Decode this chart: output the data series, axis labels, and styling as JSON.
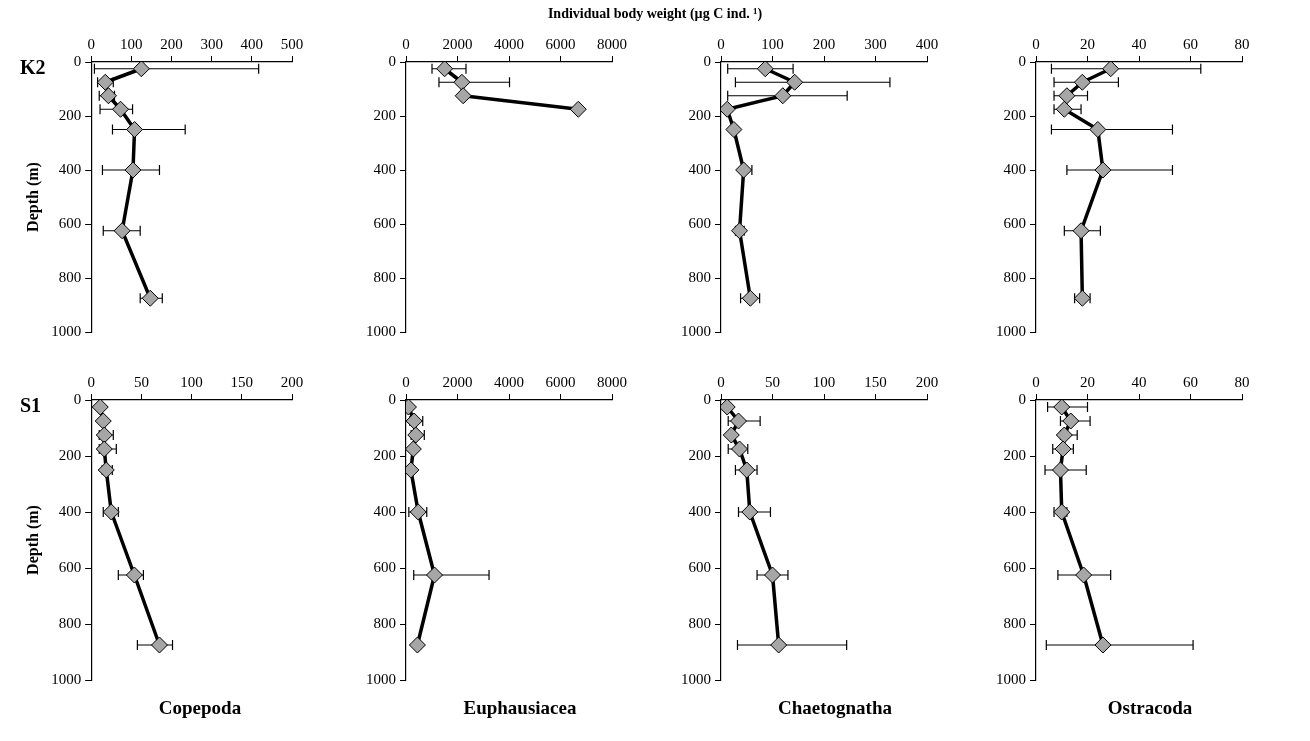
{
  "chart_data": [
    {
      "type": "line",
      "title": "K2",
      "ylabel": "Depth (m)",
      "annotations": [
        "Individual body weight (µg C ind. ¹)"
      ],
      "marker": "diamond",
      "line_style": "solid",
      "xlim": [
        0,
        500
      ],
      "xticks": [
        0,
        100,
        200,
        300,
        400,
        500
      ],
      "ylim": [
        1000,
        0
      ],
      "yticks": [
        0,
        200,
        400,
        600,
        800,
        1000
      ],
      "series": [
        {
          "color": "#000000",
          "x": [
            125,
            35,
            43,
            73,
            108,
            104,
            77,
            147
          ],
          "values": [
            25,
            75,
            125,
            175,
            250,
            400,
            625,
            875
          ],
          "xerrors": [
            [
              8,
              417
            ],
            [
              16,
              55
            ],
            [
              20,
              58
            ],
            [
              22,
              103
            ],
            [
              53,
              234
            ],
            [
              28,
              170
            ],
            [
              30,
              122
            ],
            [
              122,
              177
            ]
          ]
        }
      ]
    },
    {
      "type": "line",
      "marker": "diamond",
      "line_style": "solid",
      "xlim": [
        0,
        8000
      ],
      "xticks": [
        0,
        2000,
        4000,
        6000,
        8000
      ],
      "ylim": [
        1000,
        0
      ],
      "yticks": [
        0,
        200,
        400,
        600,
        800,
        1000
      ],
      "series": [
        {
          "color": "#000000",
          "x": [
            1500,
            2170,
            2220,
            6690
          ],
          "values": [
            25,
            75,
            125,
            175
          ],
          "xerrors": [
            [
              1010,
              2330
            ],
            [
              1280,
              4020
            ],
            null,
            null
          ]
        }
      ]
    },
    {
      "type": "line",
      "marker": "diamond",
      "line_style": "solid",
      "xlim": [
        0,
        400
      ],
      "xticks": [
        0,
        100,
        200,
        300,
        400
      ],
      "ylim": [
        1000,
        0
      ],
      "yticks": [
        0,
        200,
        400,
        600,
        800,
        1000
      ],
      "series": [
        {
          "color": "#000000",
          "x": [
            86,
            143,
            120,
            12,
            25,
            44,
            36,
            57
          ],
          "values": [
            25,
            75,
            125,
            175,
            250,
            400,
            625,
            875
          ],
          "xerrors": [
            [
              13,
              140
            ],
            [
              28,
              328
            ],
            [
              13,
              245
            ],
            null,
            null,
            [
              44,
              60
            ],
            [
              28,
              45
            ],
            [
              38,
              75
            ]
          ]
        }
      ]
    },
    {
      "type": "line",
      "marker": "diamond",
      "line_style": "solid",
      "xlim": [
        0,
        80
      ],
      "xticks": [
        0,
        20,
        40,
        60,
        80
      ],
      "ylim": [
        1000,
        0
      ],
      "yticks": [
        0,
        200,
        400,
        600,
        800,
        1000
      ],
      "series": [
        {
          "color": "#000000",
          "x": [
            29,
            18,
            12,
            11,
            24,
            26,
            17.5,
            18
          ],
          "values": [
            25,
            75,
            125,
            175,
            250,
            400,
            625,
            875
          ],
          "xerrors": [
            [
              6,
              64
            ],
            [
              7,
              32
            ],
            [
              7,
              20
            ],
            [
              7,
              17.5
            ],
            [
              6,
              53
            ],
            [
              12,
              53
            ],
            [
              11,
              25
            ],
            [
              15,
              21
            ]
          ]
        }
      ]
    },
    {
      "type": "line",
      "title": "S1",
      "ylabel": "Depth (m)",
      "xlabel": "Copepoda",
      "marker": "diamond",
      "line_style": "solid",
      "xlim": [
        0,
        200
      ],
      "xticks": [
        0,
        50,
        100,
        150,
        200
      ],
      "ylim": [
        1000,
        0
      ],
      "yticks": [
        0,
        200,
        400,
        600,
        800,
        1000
      ],
      "series": [
        {
          "color": "#000000",
          "x": [
            9,
            12,
            13,
            13,
            15,
            20,
            43,
            68
          ],
          "values": [
            25,
            75,
            125,
            175,
            250,
            400,
            625,
            875
          ],
          "xerrors": [
            null,
            null,
            [
              8,
              22
            ],
            [
              8,
              25
            ],
            [
              11,
              21
            ],
            [
              12,
              27
            ],
            [
              27,
              52
            ],
            [
              46,
              81
            ]
          ]
        }
      ]
    },
    {
      "type": "line",
      "xlabel": "Euphausiacea",
      "marker": "diamond",
      "line_style": "solid",
      "xlim": [
        0,
        8000
      ],
      "xticks": [
        0,
        2000,
        4000,
        6000,
        8000
      ],
      "ylim": [
        1000,
        0
      ],
      "yticks": [
        0,
        200,
        400,
        600,
        800,
        1000
      ],
      "series": [
        {
          "color": "#000000",
          "x": [
            95,
            316,
            380,
            285,
            190,
            474,
            1107,
            443
          ],
          "values": [
            25,
            75,
            125,
            175,
            250,
            400,
            625,
            875
          ],
          "xerrors": [
            null,
            [
              150,
              650
            ],
            [
              200,
              710
            ],
            null,
            null,
            [
              110,
              806
            ],
            [
              300,
              3225
            ],
            null
          ]
        }
      ]
    },
    {
      "type": "line",
      "xlabel": "Chaetognatha",
      "marker": "diamond",
      "line_style": "solid",
      "xlim": [
        0,
        200
      ],
      "xticks": [
        0,
        50,
        100,
        150,
        200
      ],
      "ylim": [
        1000,
        0
      ],
      "yticks": [
        0,
        200,
        400,
        600,
        800,
        1000
      ],
      "series": [
        {
          "color": "#000000",
          "x": [
            6,
            17,
            10,
            18,
            25,
            28,
            50,
            56
          ],
          "values": [
            25,
            75,
            125,
            175,
            250,
            400,
            625,
            875
          ],
          "xerrors": [
            null,
            [
              7,
              38
            ],
            null,
            [
              7,
              26
            ],
            [
              14,
              35
            ],
            [
              17,
              48
            ],
            [
              35,
              65
            ],
            [
              16,
              122
            ]
          ]
        }
      ]
    },
    {
      "type": "line",
      "xlabel": "Ostracoda",
      "marker": "diamond",
      "line_style": "solid",
      "xlim": [
        0,
        80
      ],
      "xticks": [
        0,
        20,
        40,
        60,
        80
      ],
      "ylim": [
        1000,
        0
      ],
      "yticks": [
        0,
        200,
        400,
        600,
        800,
        1000
      ],
      "series": [
        {
          "color": "#000000",
          "x": [
            10,
            13.5,
            11,
            10.5,
            9.5,
            10,
            18.5,
            26
          ],
          "values": [
            25,
            75,
            125,
            175,
            250,
            400,
            625,
            875
          ],
          "xerrors": [
            [
              4.5,
              20
            ],
            [
              9.5,
              21
            ],
            [
              9.5,
              16
            ],
            [
              6.5,
              14.5
            ],
            [
              3.5,
              19.5
            ],
            [
              7,
              12
            ],
            [
              8.5,
              29
            ],
            [
              4,
              61
            ]
          ]
        }
      ]
    }
  ]
}
